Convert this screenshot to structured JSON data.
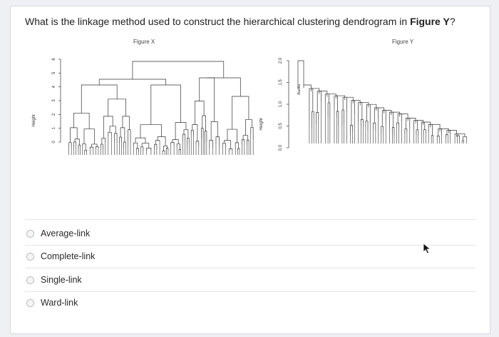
{
  "question": {
    "text_before": "What is the linkage method used to construct the hierarchical clustering dendrogram in ",
    "figure_ref": "Figure Y",
    "text_after": "?"
  },
  "figures": {
    "x": {
      "title": "Figure X",
      "ylabel": "Height",
      "ticks": [
        "0",
        "1",
        "2",
        "3",
        "4",
        "5",
        "6"
      ]
    },
    "y": {
      "title": "Figure Y",
      "ylabel": "Height",
      "ticks": [
        "0.0",
        "0.5",
        "1.0",
        "1.5",
        "2.0"
      ],
      "top_leaf": "Alaska"
    }
  },
  "options": [
    {
      "label": "Average-link"
    },
    {
      "label": "Complete-link"
    },
    {
      "label": "Single-link"
    },
    {
      "label": "Ward-link"
    }
  ]
}
